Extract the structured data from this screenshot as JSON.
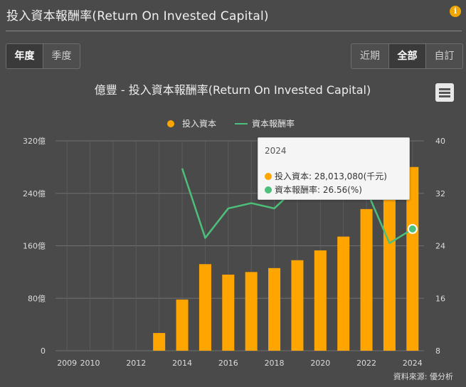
{
  "header": {
    "title": "投入資本報酬率(Return On Invested Capital)"
  },
  "period_tabs": [
    {
      "label": "年度",
      "active": true
    },
    {
      "label": "季度",
      "active": false
    }
  ],
  "range_tabs": [
    {
      "label": "近期",
      "active": false
    },
    {
      "label": "全部",
      "active": true
    },
    {
      "label": "自訂",
      "active": false
    }
  ],
  "icons": {
    "info": "info-icon",
    "menu": "hamburger-menu-icon"
  },
  "colors": {
    "bar": "#ffa500",
    "line": "#4cbf7a",
    "background": "#4a4a4a"
  },
  "tooltip": {
    "year": "2024",
    "rows": [
      {
        "label": "投入資本: 28,013,080(千元)",
        "color": "#ffa500"
      },
      {
        "label": "資本報酬率: 26.56(%)",
        "color": "#4cbf7a"
      }
    ]
  },
  "source": "資料來源: 優分析",
  "chart_data": {
    "type": "bar",
    "title": "億豐 - 投入資本報酬率(Return On Invested Capital)",
    "legend": [
      "投入資本",
      "資本報酬率"
    ],
    "legend_position": "top-center",
    "x": [
      2009,
      2010,
      2011,
      2012,
      2013,
      2014,
      2015,
      2016,
      2017,
      2018,
      2019,
      2020,
      2021,
      2022,
      2023,
      2024
    ],
    "x_tick_labels": [
      "2009",
      "2010",
      "2012",
      "2014",
      "2016",
      "2018",
      "2020",
      "2022",
      "2024"
    ],
    "x_tick_values": [
      2009,
      2010,
      2012,
      2014,
      2016,
      2018,
      2020,
      2022,
      2024
    ],
    "series": [
      {
        "name": "投入資本",
        "type": "bar",
        "axis": "left",
        "values": [
          null,
          null,
          null,
          null,
          27,
          78,
          132,
          116,
          120,
          126,
          138,
          153,
          174,
          216,
          238,
          280.13
        ]
      },
      {
        "name": "資本報酬率",
        "type": "line",
        "axis": "right",
        "values": [
          null,
          null,
          null,
          null,
          null,
          35.8,
          25.2,
          29.7,
          30.5,
          29.7,
          33,
          36,
          38,
          32.5,
          24.4,
          26.56
        ]
      }
    ],
    "y_left": {
      "ticks": [
        "0",
        "80億",
        "160億",
        "240億",
        "320億"
      ],
      "tick_values": [
        0,
        80,
        160,
        240,
        320
      ],
      "range": [
        0,
        320
      ]
    },
    "y_right": {
      "ticks": [
        "8",
        "16",
        "24",
        "32",
        "40"
      ],
      "tick_values": [
        8,
        16,
        24,
        32,
        40
      ],
      "range": [
        8,
        40
      ]
    },
    "grid": true
  }
}
